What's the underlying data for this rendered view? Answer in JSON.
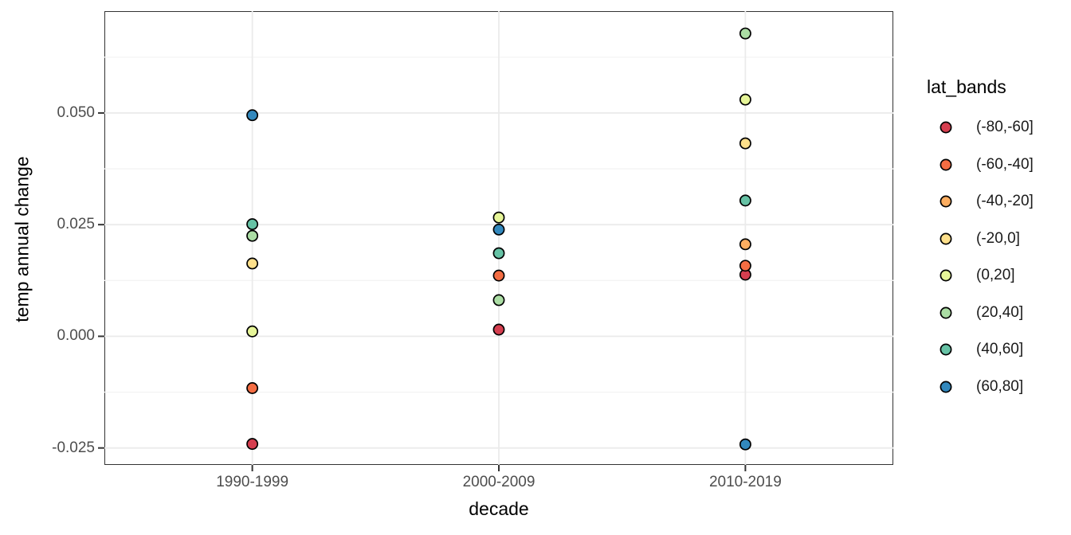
{
  "style": {
    "background": "#ffffff",
    "panel_border": "#333333",
    "grid_major_color": "#ebebeb",
    "grid_minor_color": "#f4f4f4",
    "tick_mark_color": "#333333",
    "axis_text_color": "#4d4d4d",
    "point_stroke": "#000000"
  },
  "chart_data": {
    "type": "scatter",
    "title": "",
    "xlabel": "decade",
    "ylabel": "temp annual change",
    "x_categories": [
      "1990-1999",
      "2000-2009",
      "2010-2019"
    ],
    "y_tick_values": [
      0.05,
      0.025,
      0.0,
      -0.025
    ],
    "y_tick_labels": [
      "0.050",
      "0.025",
      "0.000",
      "-0.025"
    ],
    "y_minor_gridlines": [
      0.0625,
      0.0375,
      0.0125,
      -0.0125
    ],
    "ylim": [
      -0.0288,
      0.0728
    ],
    "grid": true,
    "legend_position": "right",
    "legend_title": "lat_bands",
    "series": [
      {
        "name": "(-80,-60]",
        "color": "#d53e4f",
        "points": [
          {
            "x": "1990-1999",
            "y": -0.0241
          },
          {
            "x": "2000-2009",
            "y": 0.0015
          },
          {
            "x": "2010-2019",
            "y": 0.0138
          }
        ]
      },
      {
        "name": "(-60,-40]",
        "color": "#f46d43",
        "points": [
          {
            "x": "1990-1999",
            "y": -0.0116
          },
          {
            "x": "2000-2009",
            "y": 0.0136
          },
          {
            "x": "2010-2019",
            "y": 0.0158
          }
        ]
      },
      {
        "name": "(-40,-20]",
        "color": "#fdae61",
        "points": [
          {
            "x": "2010-2019",
            "y": 0.0206
          }
        ]
      },
      {
        "name": "(-20,0]",
        "color": "#fee08b",
        "points": [
          {
            "x": "1990-1999",
            "y": 0.0163
          },
          {
            "x": "2010-2019",
            "y": 0.0432
          }
        ]
      },
      {
        "name": "(0,20]",
        "color": "#e6f598",
        "points": [
          {
            "x": "1990-1999",
            "y": 0.0011
          },
          {
            "x": "2000-2009",
            "y": 0.0266
          },
          {
            "x": "2010-2019",
            "y": 0.053
          }
        ]
      },
      {
        "name": "(20,40]",
        "color": "#abdda4",
        "points": [
          {
            "x": "1990-1999",
            "y": 0.0225
          },
          {
            "x": "2000-2009",
            "y": 0.0081
          },
          {
            "x": "2010-2019",
            "y": 0.0678
          }
        ]
      },
      {
        "name": "(40,60]",
        "color": "#66c2a5",
        "points": [
          {
            "x": "1990-1999",
            "y": 0.0251
          },
          {
            "x": "2000-2009",
            "y": 0.0186
          },
          {
            "x": "2010-2019",
            "y": 0.0304
          }
        ]
      },
      {
        "name": "(60,80]",
        "color": "#3288bd",
        "points": [
          {
            "x": "1990-1999",
            "y": 0.0495
          },
          {
            "x": "2000-2009",
            "y": 0.0239
          },
          {
            "x": "2010-2019",
            "y": -0.0242
          }
        ]
      }
    ]
  }
}
